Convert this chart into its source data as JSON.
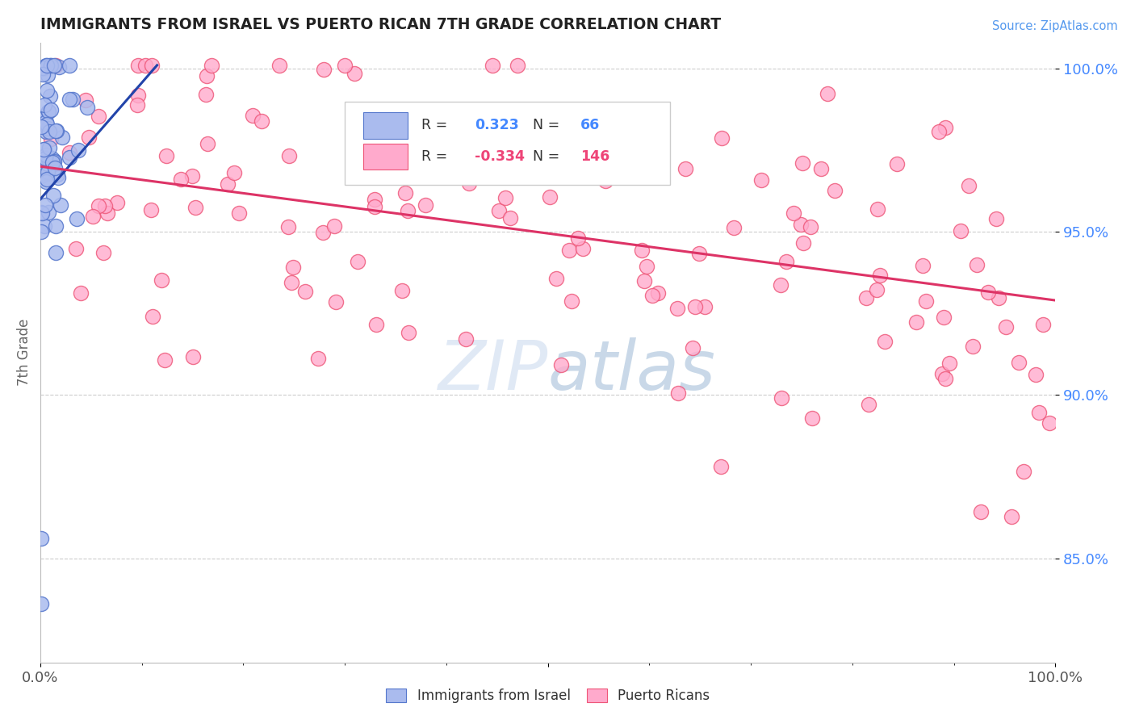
{
  "title": "IMMIGRANTS FROM ISRAEL VS PUERTO RICAN 7TH GRADE CORRELATION CHART",
  "source": "Source: ZipAtlas.com",
  "ylabel": "7th Grade",
  "ytick_labels": [
    "100.0%",
    "95.0%",
    "90.0%",
    "85.0%"
  ],
  "ytick_values": [
    1.0,
    0.95,
    0.9,
    0.85
  ],
  "xmin": 0.0,
  "xmax": 1.0,
  "ymin": 0.818,
  "ymax": 1.008,
  "blue_R": 0.323,
  "blue_N": 66,
  "pink_R": -0.334,
  "pink_N": 146,
  "blue_fill": "#AABBEE",
  "blue_edge": "#5577CC",
  "pink_fill": "#FFAACC",
  "pink_edge": "#EE5577",
  "blue_line_color": "#2244AA",
  "pink_line_color": "#DD3366",
  "legend_label_blue": "Immigrants from Israel",
  "legend_label_pink": "Puerto Ricans",
  "background_color": "#FFFFFF",
  "grid_color": "#CCCCCC",
  "title_color": "#222222",
  "blue_line": [
    [
      0.0,
      0.96
    ],
    [
      0.115,
      1.001
    ]
  ],
  "pink_line": [
    [
      0.0,
      0.97
    ],
    [
      1.0,
      0.929
    ]
  ]
}
